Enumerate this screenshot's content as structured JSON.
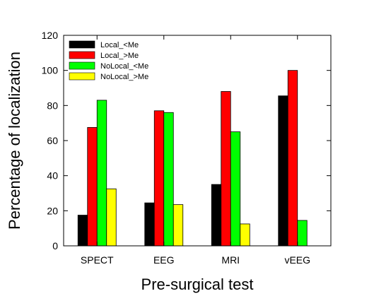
{
  "chart_data": {
    "type": "bar",
    "categories": [
      "SPECT",
      "EEG",
      "MRI",
      "vEEG"
    ],
    "series": [
      {
        "name": "Local_<Me",
        "color": "#000000",
        "values": [
          17.5,
          24.5,
          35,
          85.5
        ]
      },
      {
        "name": "Local_>Me",
        "color": "#ff0000",
        "values": [
          67.5,
          77,
          88,
          100
        ]
      },
      {
        "name": "NoLocal_<Me",
        "color": "#00ff00",
        "values": [
          83,
          76,
          65,
          14.5
        ]
      },
      {
        "name": "NoLocal_>Me",
        "color": "#ffff00",
        "values": [
          32.5,
          23.5,
          12.5,
          0
        ]
      }
    ],
    "title": "",
    "xlabel": "Pre-surgical test",
    "ylabel": "Percentage of localization",
    "ylim": [
      0,
      120
    ],
    "yticks": [
      0,
      20,
      40,
      60,
      80,
      100,
      120
    ],
    "grid": false,
    "legend_position": "top-left"
  }
}
